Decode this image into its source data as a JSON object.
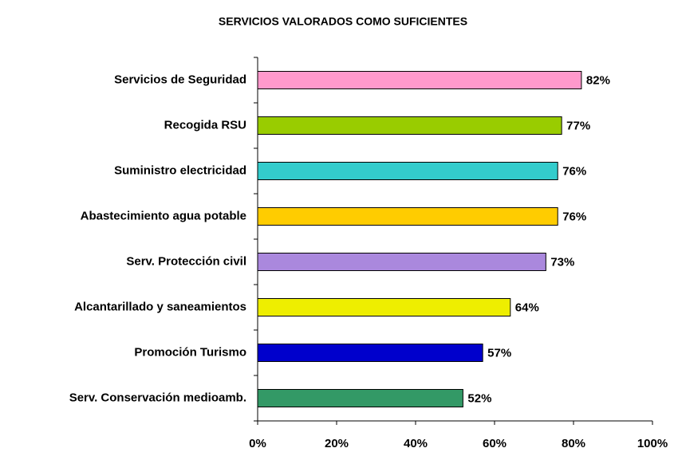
{
  "chart_data": {
    "type": "bar",
    "orientation": "horizontal",
    "title": "SERVICIOS VALORADOS COMO SUFICIENTES",
    "categories": [
      "Servicios de Seguridad",
      "Recogida RSU",
      "Suministro electricidad",
      "Abastecimiento agua potable",
      "Serv. Protección civil",
      "Alcantarillado y saneamientos",
      "Promoción Turismo",
      "Serv. Conservación medioamb."
    ],
    "values": [
      82,
      77,
      76,
      76,
      73,
      64,
      57,
      52
    ],
    "value_labels": [
      "82%",
      "77%",
      "76%",
      "76%",
      "73%",
      "64%",
      "57%",
      "52%"
    ],
    "colors": [
      "#ff99cc",
      "#99cc00",
      "#33cccc",
      "#ffcc00",
      "#aa88dd",
      "#eeee00",
      "#0000cc",
      "#339966"
    ],
    "xlim": [
      0,
      100
    ],
    "xticks": [
      {
        "value": 0,
        "label": "0%"
      },
      {
        "value": 20,
        "label": "20%"
      },
      {
        "value": 40,
        "label": "40%"
      },
      {
        "value": 60,
        "label": "60%"
      },
      {
        "value": 80,
        "label": "80%"
      },
      {
        "value": 100,
        "label": "100%"
      }
    ]
  }
}
